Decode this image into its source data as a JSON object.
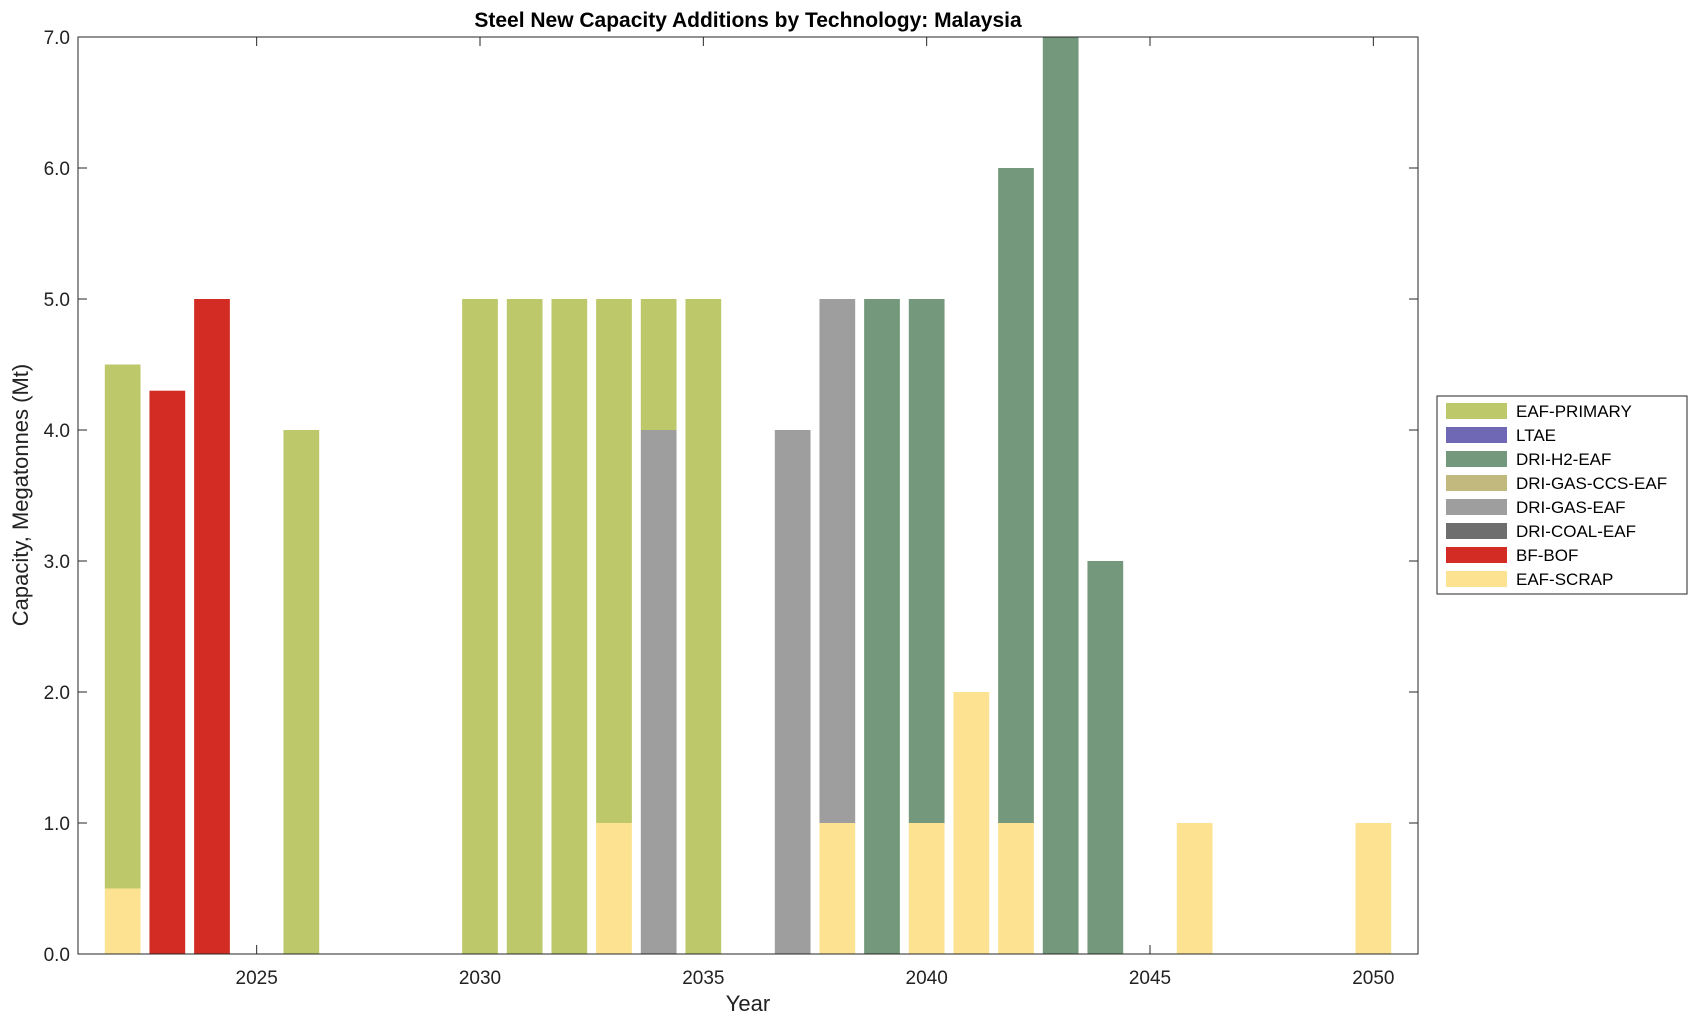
{
  "chart_data": {
    "type": "bar",
    "stacked": true,
    "title": "Steel New Capacity Additions by Technology: Malaysia",
    "xlabel": "Year",
    "ylabel": "Capacity, Megatonnes (Mt)",
    "xlim": [
      2021,
      2051
    ],
    "ylim": [
      0,
      7
    ],
    "xticks": [
      2025,
      2030,
      2035,
      2040,
      2045,
      2050
    ],
    "yticks": [
      0,
      1,
      2,
      3,
      4,
      5,
      6,
      7
    ],
    "ytick_labels": [
      "0.0",
      "1.0",
      "2.0",
      "3.0",
      "4.0",
      "5.0",
      "6.0",
      "7.0"
    ],
    "legend_position": "right",
    "x": [
      2022,
      2023,
      2024,
      2025,
      2026,
      2027,
      2028,
      2029,
      2030,
      2031,
      2032,
      2033,
      2034,
      2035,
      2036,
      2037,
      2038,
      2039,
      2040,
      2041,
      2042,
      2043,
      2044,
      2045,
      2046,
      2047,
      2048,
      2049,
      2050
    ],
    "series": [
      {
        "name": "EAF-SCRAP",
        "color": "#FDE391",
        "values": [
          0.5,
          0,
          0,
          0,
          0,
          0,
          0,
          0,
          0,
          0,
          0,
          1,
          0,
          0,
          0,
          0,
          1,
          0,
          1,
          2,
          1,
          0,
          0,
          0,
          1,
          0,
          0,
          0,
          1
        ]
      },
      {
        "name": "BF-BOF",
        "color": "#D22C24",
        "values": [
          0,
          4.3,
          5,
          0,
          0,
          0,
          0,
          0,
          0,
          0,
          0,
          0,
          0,
          0,
          0,
          0,
          0,
          0,
          0,
          0,
          0,
          0,
          0,
          0,
          0,
          0,
          0,
          0,
          0
        ]
      },
      {
        "name": "DRI-COAL-EAF",
        "color": "#6E6E6E",
        "values": [
          0,
          0,
          0,
          0,
          0,
          0,
          0,
          0,
          0,
          0,
          0,
          0,
          0,
          0,
          0,
          0,
          0,
          0,
          0,
          0,
          0,
          0,
          0,
          0,
          0,
          0,
          0,
          0,
          0
        ]
      },
      {
        "name": "DRI-GAS-EAF",
        "color": "#9E9E9E",
        "values": [
          0,
          0,
          0,
          0,
          0,
          0,
          0,
          0,
          0,
          0,
          0,
          0,
          4,
          0,
          0,
          4,
          4,
          0,
          0,
          0,
          0,
          0,
          0,
          0,
          0,
          0,
          0,
          0,
          0
        ]
      },
      {
        "name": "DRI-GAS-CCS-EAF",
        "color": "#C2B97F",
        "values": [
          0,
          0,
          0,
          0,
          0,
          0,
          0,
          0,
          0,
          0,
          0,
          0,
          0,
          0,
          0,
          0,
          0,
          0,
          0,
          0,
          0,
          0,
          0,
          0,
          0,
          0,
          0,
          0,
          0
        ]
      },
      {
        "name": "DRI-H2-EAF",
        "color": "#74987B",
        "values": [
          0,
          0,
          0,
          0,
          0,
          0,
          0,
          0,
          0,
          0,
          0,
          0,
          0,
          0,
          0,
          0,
          0,
          5,
          4,
          0,
          5,
          7,
          3,
          0,
          0,
          0,
          0,
          0,
          0
        ]
      },
      {
        "name": "LTAE",
        "color": "#6F68B4",
        "values": [
          0,
          0,
          0,
          0,
          0,
          0,
          0,
          0,
          0,
          0,
          0,
          0,
          0,
          0,
          0,
          0,
          0,
          0,
          0,
          0,
          0,
          0,
          0,
          0,
          0,
          0,
          0,
          0,
          0
        ]
      },
      {
        "name": "EAF-PRIMARY",
        "color": "#BDC86B",
        "values": [
          4,
          0,
          0,
          0,
          4,
          0,
          0,
          0,
          5,
          5,
          5,
          4,
          1,
          5,
          0,
          0,
          0,
          0,
          0,
          0,
          0,
          0,
          0,
          0,
          0,
          0,
          0,
          0,
          0
        ]
      }
    ],
    "legend_order": [
      "EAF-PRIMARY",
      "LTAE",
      "DRI-H2-EAF",
      "DRI-GAS-CCS-EAF",
      "DRI-GAS-EAF",
      "DRI-COAL-EAF",
      "BF-BOF",
      "EAF-SCRAP"
    ]
  }
}
